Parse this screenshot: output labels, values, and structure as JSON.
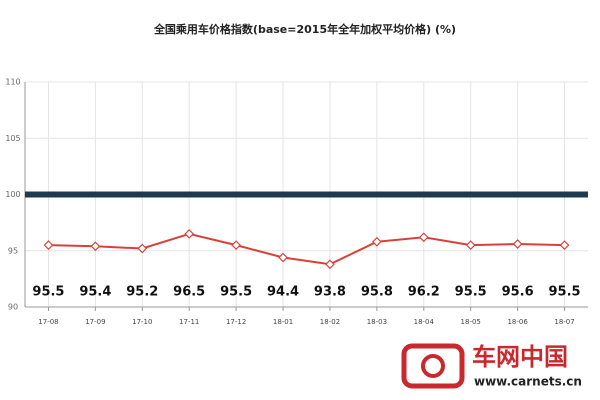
{
  "chart_data": {
    "type": "line",
    "title": "全国乘用车价格指数(base=2015年全年加权平均价格) (%)",
    "categories": [
      "17-08",
      "17-09",
      "17-10",
      "17-11",
      "17-12",
      "18-01",
      "18-02",
      "18-03",
      "18-04",
      "18-05",
      "18-06",
      "18-07"
    ],
    "series": [
      {
        "color": "#d9403a",
        "values": [
          95.5,
          95.4,
          95.2,
          96.5,
          95.5,
          94.4,
          93.8,
          95.8,
          96.2,
          95.5,
          95.6,
          95.5
        ]
      }
    ],
    "reference_line": {
      "value": 100,
      "color": "#1d3a52"
    },
    "ylim": [
      90,
      110
    ],
    "yticks": [
      90,
      95,
      100,
      105,
      110
    ],
    "grid": true
  },
  "logo": {
    "name": "车网中国",
    "url": "www.carnets.cn"
  }
}
